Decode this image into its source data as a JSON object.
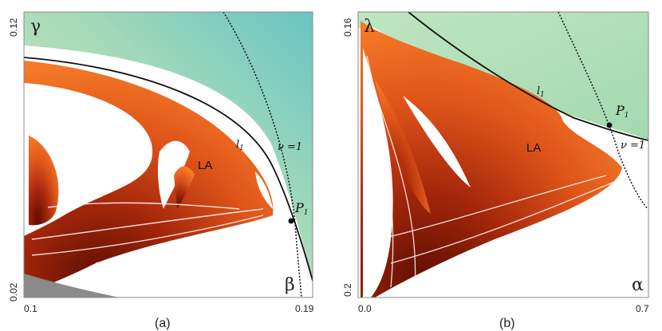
{
  "colors": {
    "stable_region": "#b6dcb8",
    "stable_region_dark": "#72c6c2",
    "la_light": "#f06a1a",
    "la_dark": "#6e1204",
    "bounded_region": "#ffffff",
    "gray_region": "#8a8a8a"
  },
  "panel_a": {
    "caption": "(a)",
    "x_axis": {
      "min_label": "0.1",
      "max_label": "0.19",
      "symbol": "β"
    },
    "y_axis": {
      "min_label": "0.02",
      "max_label": "0.12",
      "symbol": "γ"
    },
    "labels": {
      "region": "LA",
      "curve": "l",
      "curve_sub": "1",
      "neutral": "ν =1",
      "point": "P",
      "point_sub": "1"
    }
  },
  "panel_b": {
    "caption": "(b)",
    "x_axis": {
      "min_label": "0.0",
      "max_label": "0.7",
      "symbol": "α"
    },
    "y_axis": {
      "min_label": "0.2",
      "max_label": "0.16",
      "symbol": "λ"
    },
    "labels": {
      "region": "LA",
      "curve": "l",
      "curve_sub": "1",
      "neutral": "ν =1",
      "point": "P",
      "point_sub": "1"
    }
  }
}
